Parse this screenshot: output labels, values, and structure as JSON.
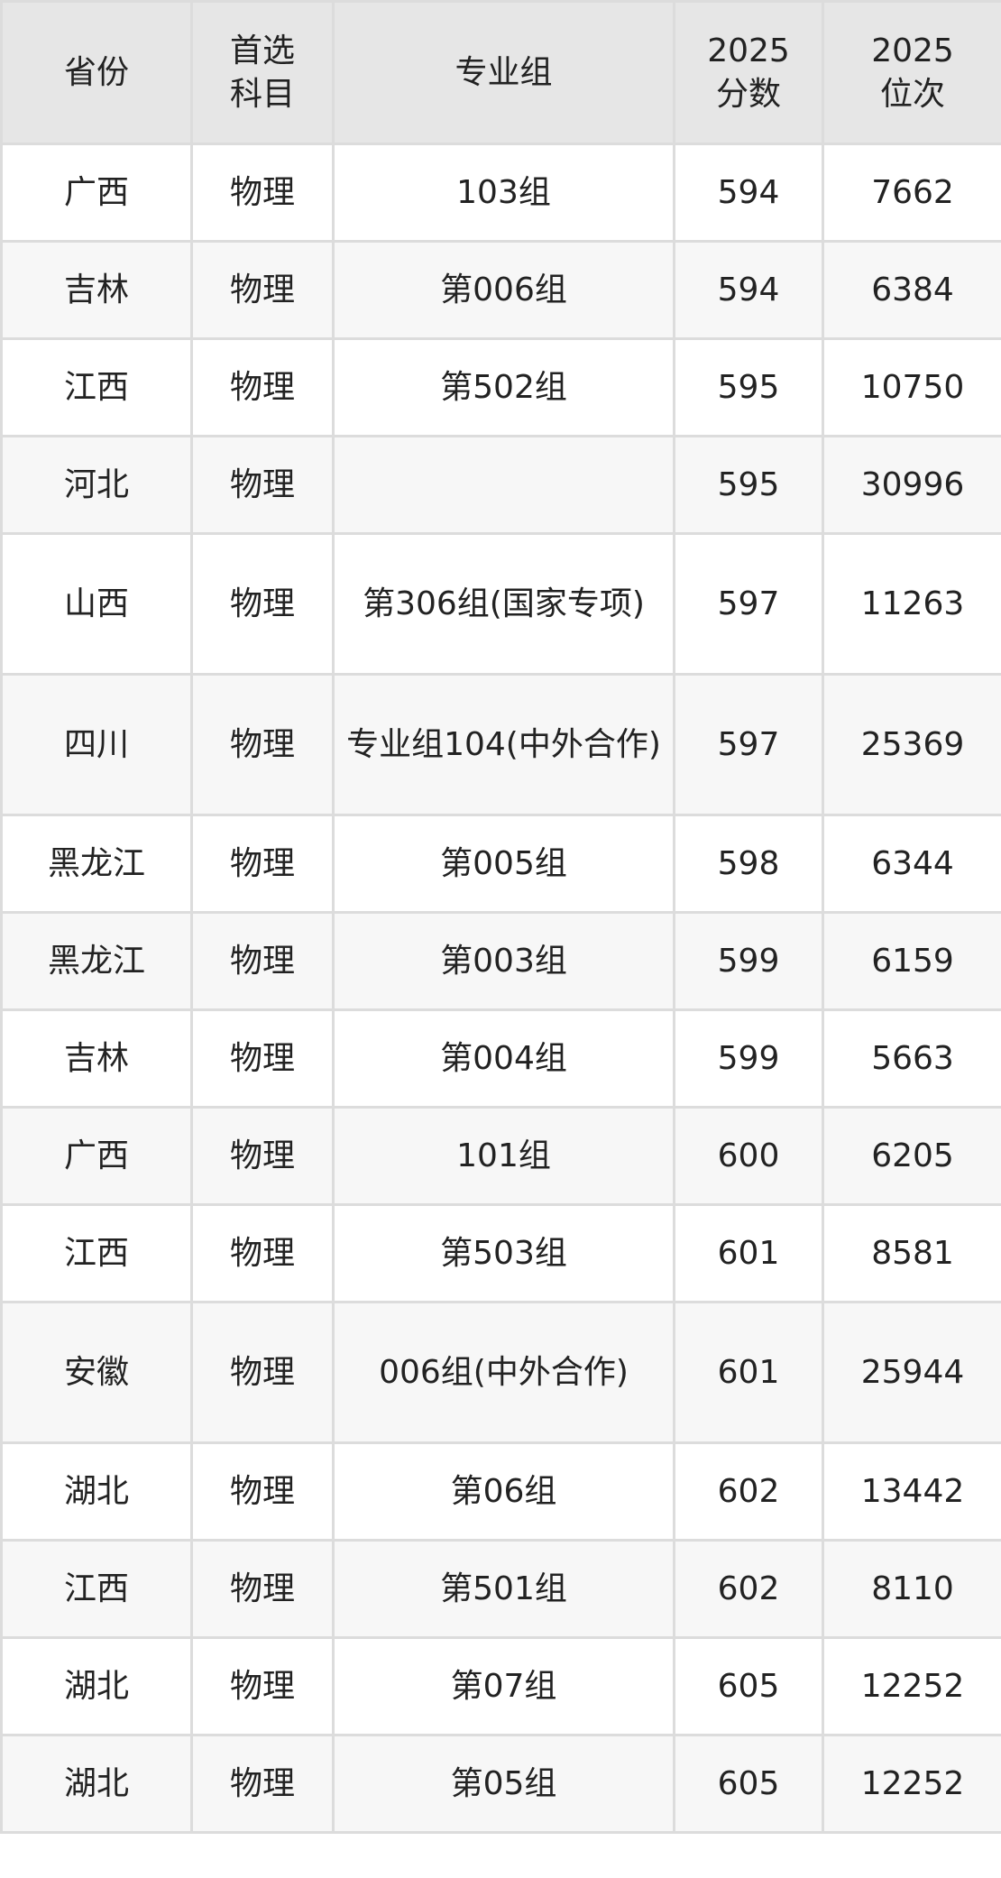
{
  "table": {
    "headers": [
      "省份",
      "首选\n科目",
      "专业组",
      "2025\n分数",
      "2025\n位次"
    ],
    "rows": [
      [
        "广西",
        "物理",
        "103组",
        "594",
        "7662"
      ],
      [
        "吉林",
        "物理",
        "第006组",
        "594",
        "6384"
      ],
      [
        "江西",
        "物理",
        "第502组",
        "595",
        "10750"
      ],
      [
        "河北",
        "物理",
        "",
        "595",
        "30996"
      ],
      [
        "山西",
        "物理",
        "第306组(国家专项)",
        "597",
        "11263"
      ],
      [
        "四川",
        "物理",
        "专业组104(中外合作)",
        "597",
        "25369"
      ],
      [
        "黑龙江",
        "物理",
        "第005组",
        "598",
        "6344"
      ],
      [
        "黑龙江",
        "物理",
        "第003组",
        "599",
        "6159"
      ],
      [
        "吉林",
        "物理",
        "第004组",
        "599",
        "5663"
      ],
      [
        "广西",
        "物理",
        "101组",
        "600",
        "6205"
      ],
      [
        "江西",
        "物理",
        "第503组",
        "601",
        "8581"
      ],
      [
        "安徽",
        "物理",
        "006组(中外合作)",
        "601",
        "25944"
      ],
      [
        "湖北",
        "物理",
        "第06组",
        "602",
        "13442"
      ],
      [
        "江西",
        "物理",
        "第501组",
        "602",
        "8110"
      ],
      [
        "湖北",
        "物理",
        "第07组",
        "605",
        "12252"
      ],
      [
        "湖北",
        "物理",
        "第05组",
        "605",
        "12252"
      ]
    ]
  }
}
